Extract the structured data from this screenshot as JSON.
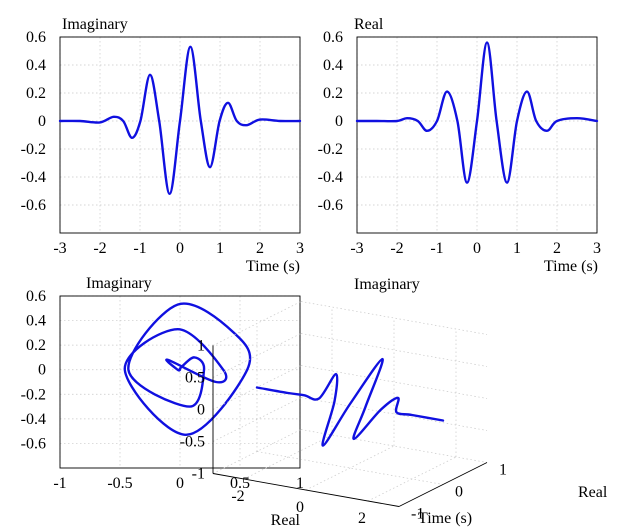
{
  "colors": {
    "curve": "#1010e0",
    "grid": "#c8c8c8",
    "axes": "#000000"
  },
  "chart_data": [
    {
      "type": "line",
      "title": "Imaginary",
      "xlabel": "Time (s)",
      "ylabel": "",
      "xlim": [
        -3,
        3
      ],
      "ylim": [
        -0.8,
        0.6
      ],
      "xticks": [
        -3,
        -2,
        -1,
        0,
        1,
        2,
        3
      ],
      "yticks": [
        0.6,
        0.4,
        0.2,
        0,
        -0.2,
        -0.4,
        -0.6
      ],
      "xtick_labels": [
        "-3",
        "-2",
        "-1",
        "0",
        "1",
        "2",
        "3"
      ],
      "ytick_labels": [
        "0.6",
        "0.4",
        "0.2",
        "0",
        "-0.2",
        "-0.4",
        "-0.6"
      ],
      "grid": true,
      "series": [
        {
          "x": [
            -3,
            -2.5,
            -2.0,
            -1.66,
            -1.42,
            -1.2,
            -0.99,
            -0.75,
            -0.52,
            -0.26,
            0,
            0.26,
            0.52,
            0.75,
            0.99,
            1.2,
            1.42,
            1.66,
            2.0,
            2.5,
            3
          ],
          "y": [
            0,
            0,
            -0.01,
            0.03,
            0.0,
            -0.12,
            0.0,
            0.33,
            0.0,
            -0.52,
            0,
            0.53,
            0.0,
            -0.33,
            0.0,
            0.13,
            0.0,
            -0.03,
            0.01,
            0,
            0
          ]
        }
      ]
    },
    {
      "type": "line",
      "title": "Real",
      "xlabel": "Time (s)",
      "ylabel": "",
      "xlim": [
        -3,
        3
      ],
      "ylim": [
        -0.8,
        0.6
      ],
      "xticks": [
        -3,
        -2,
        -1,
        0,
        1,
        2,
        3
      ],
      "yticks": [
        0.6,
        0.4,
        0.2,
        0,
        -0.2,
        -0.4,
        -0.6
      ],
      "xtick_labels": [
        "-3",
        "-2",
        "-1",
        "0",
        "1",
        "2",
        "3"
      ],
      "ytick_labels": [
        "0.6",
        "0.4",
        "0.2",
        "0",
        "-0.2",
        "-0.4",
        "-0.6"
      ],
      "grid": true,
      "series": [
        {
          "x": [
            -3,
            -2.5,
            -2.0,
            -1.75,
            -1.48,
            -1.25,
            -1.0,
            -0.75,
            -0.49,
            -0.25,
            0,
            0.25,
            0.49,
            0.75,
            1.0,
            1.25,
            1.48,
            1.75,
            2.0,
            2.5,
            3
          ],
          "y": [
            0,
            0,
            0.0,
            0.02,
            0.0,
            -0.07,
            0.0,
            0.21,
            0.0,
            -0.44,
            0.0,
            0.56,
            0.0,
            -0.44,
            0.0,
            0.21,
            0.0,
            -0.07,
            0.0,
            0.02,
            0
          ]
        }
      ]
    },
    {
      "type": "line",
      "title": "Imaginary",
      "xlabel": "Real",
      "ylabel": "",
      "xlim": [
        -1,
        1
      ],
      "ylim": [
        -0.8,
        0.6
      ],
      "xticks": [
        -1,
        -0.5,
        0,
        0.5,
        1
      ],
      "yticks": [
        0.6,
        0.4,
        0.2,
        0,
        -0.2,
        -0.4,
        -0.6
      ],
      "xtick_labels": [
        "-1",
        "-0.5",
        "0",
        "0.5",
        "1"
      ],
      "ytick_labels": [
        "0.6",
        "0.4",
        "0.2",
        "0",
        "-0.2",
        "-0.4",
        "-0.6"
      ],
      "grid": true,
      "series": [
        {
          "x": [
            0,
            0.01,
            0.12,
            0.2,
            0.08,
            -0.43,
            -0.02,
            0.45,
            0.56,
            0.05,
            -0.46,
            -0.02,
            0.36,
            0.3,
            -0.1,
            -0.02,
            0.0
          ],
          "y": [
            0,
            0.02,
            0.1,
            0.0,
            -0.3,
            0.0,
            0.53,
            0.3,
            0.0,
            -0.53,
            0.0,
            0.33,
            0.0,
            -0.1,
            0.08,
            0.0,
            0
          ]
        }
      ]
    },
    {
      "type": "line",
      "title": "Imaginary",
      "xlabel": "Time (s)",
      "ylabel": "Real",
      "zlabel": "",
      "xlim": [
        -3,
        3
      ],
      "ylim": [
        -1,
        1
      ],
      "zlim": [
        -1,
        1
      ],
      "xtick_labels": [
        "-2",
        "0",
        "2"
      ],
      "ytick_labels": [
        "-1",
        "0",
        "1"
      ],
      "ztick_labels": [
        "1",
        "0.5",
        "0",
        "-0.5",
        "-1"
      ],
      "grid": true,
      "series": [
        {
          "x": [
            -3,
            -2,
            -1.5,
            -1.0,
            -0.75,
            -0.5,
            -0.25,
            0,
            0.25,
            0.5,
            0.75,
            1.0,
            1.25,
            1.5,
            2,
            3
          ],
          "y": [
            0,
            0,
            0.02,
            0.0,
            0.21,
            0.0,
            -0.44,
            0.0,
            0.56,
            0.0,
            -0.44,
            0.0,
            0.21,
            0.0,
            0.0,
            0
          ],
          "z": [
            0,
            0,
            0.0,
            0.0,
            0.33,
            0.0,
            -0.52,
            0.0,
            0.53,
            0.0,
            -0.33,
            0.0,
            0.13,
            0.0,
            0.0,
            0
          ]
        }
      ]
    }
  ]
}
